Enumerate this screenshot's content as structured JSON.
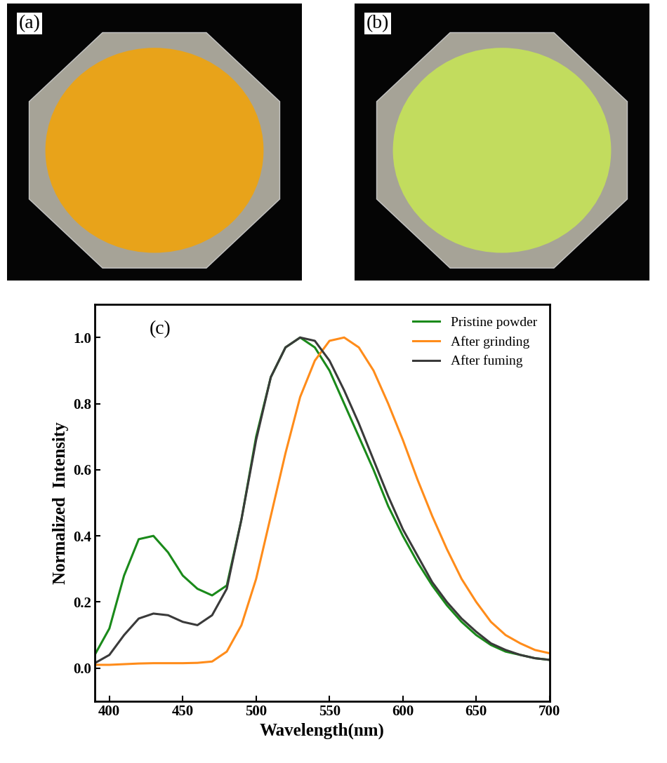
{
  "photos": [
    {
      "label": "(a)",
      "color": "#e8a31a"
    },
    {
      "label": "(b)",
      "color": "#c2dc5e"
    }
  ],
  "chart_data": {
    "type": "line",
    "annotation": "(c)",
    "x_label": "Wavelength(nm)",
    "y_label": "Normalized  Intensity",
    "x": [
      390,
      400,
      410,
      420,
      430,
      440,
      450,
      460,
      470,
      480,
      490,
      500,
      510,
      520,
      530,
      540,
      550,
      560,
      570,
      580,
      590,
      600,
      610,
      620,
      630,
      640,
      650,
      660,
      670,
      680,
      690,
      700
    ],
    "series": [
      {
        "name": "Pristine powder",
        "color": "#1a8a1a",
        "values": [
          0.04,
          0.12,
          0.28,
          0.39,
          0.4,
          0.35,
          0.28,
          0.24,
          0.22,
          0.25,
          0.45,
          0.7,
          0.88,
          0.97,
          1.0,
          0.97,
          0.9,
          0.8,
          0.7,
          0.6,
          0.49,
          0.4,
          0.32,
          0.25,
          0.19,
          0.14,
          0.1,
          0.07,
          0.05,
          0.04,
          0.03,
          0.025
        ]
      },
      {
        "name": "After grinding",
        "color": "#ff8c1a",
        "values": [
          0.01,
          0.01,
          0.012,
          0.014,
          0.015,
          0.015,
          0.015,
          0.016,
          0.02,
          0.05,
          0.13,
          0.27,
          0.46,
          0.65,
          0.82,
          0.93,
          0.99,
          1.0,
          0.97,
          0.9,
          0.8,
          0.69,
          0.57,
          0.46,
          0.36,
          0.27,
          0.2,
          0.14,
          0.1,
          0.075,
          0.055,
          0.045
        ]
      },
      {
        "name": "After fuming",
        "color": "#3a3a3a",
        "values": [
          0.015,
          0.04,
          0.1,
          0.15,
          0.165,
          0.16,
          0.14,
          0.13,
          0.16,
          0.24,
          0.45,
          0.69,
          0.88,
          0.97,
          1.0,
          0.99,
          0.93,
          0.84,
          0.74,
          0.63,
          0.52,
          0.42,
          0.34,
          0.26,
          0.2,
          0.15,
          0.11,
          0.075,
          0.055,
          0.04,
          0.03,
          0.025
        ]
      }
    ],
    "xlim": [
      390,
      700
    ],
    "xticks": [
      400,
      450,
      500,
      550,
      600,
      650,
      700
    ],
    "ylim": [
      -0.1,
      1.1
    ],
    "yticks": [
      {
        "value": 0,
        "label": "0.0"
      },
      {
        "value": 0.2,
        "label": "0.2"
      },
      {
        "value": 0.4,
        "label": "0.4"
      },
      {
        "value": 0.6,
        "label": "0.6"
      },
      {
        "value": 0.8,
        "label": "0.8"
      },
      {
        "value": 1.0,
        "label": "1.0"
      }
    ],
    "legend": "upper right",
    "grid": false
  }
}
